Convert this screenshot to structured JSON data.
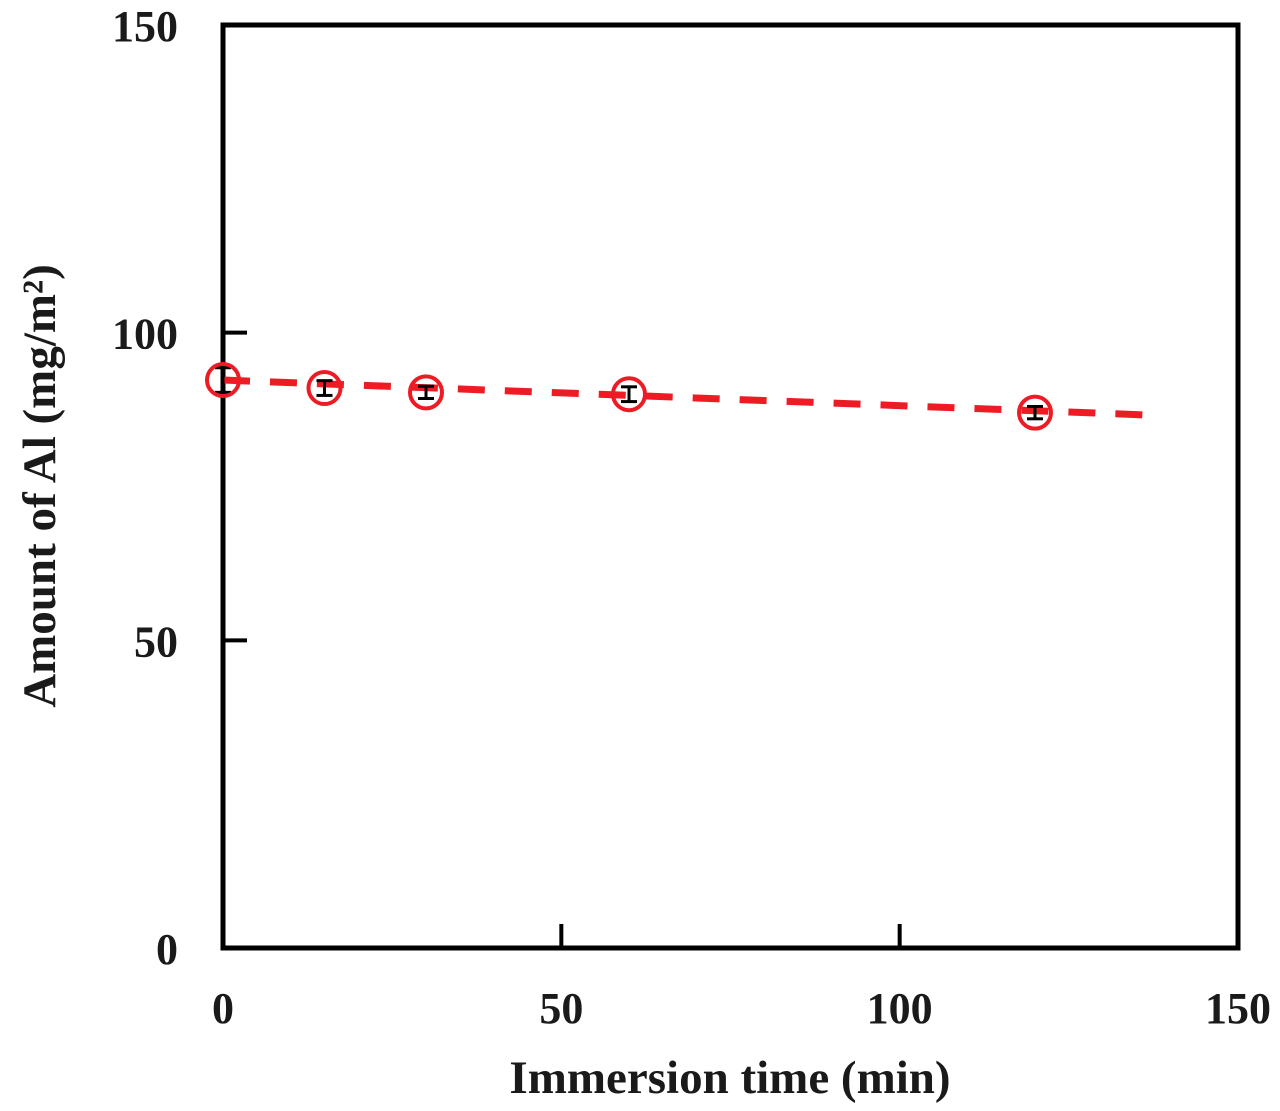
{
  "chart_data": {
    "type": "scatter",
    "title": "",
    "xlabel": "Immersion time (min)",
    "ylabel": "Amount of Al (mg/m²)",
    "xlim": [
      0,
      150
    ],
    "ylim": [
      0,
      150
    ],
    "x_ticks": [
      0,
      50,
      100,
      150
    ],
    "y_ticks": [
      0,
      50,
      100,
      150
    ],
    "grid": false,
    "legend": "none",
    "axis_color": "#000000",
    "background_color": "#ffffff",
    "series": [
      {
        "name": "amount-of-al",
        "marker": "open-circle",
        "marker_color": "#ed1c24",
        "x": [
          0,
          15,
          30,
          60,
          120
        ],
        "y": [
          92.3,
          91,
          90.3,
          90,
          87
        ],
        "y_err": [
          2,
          1.2,
          1,
          1.2,
          1
        ],
        "error_color": "#000000"
      }
    ],
    "trendline": {
      "style": "dashed",
      "color": "#ed1c24",
      "points": [
        [
          0,
          92.3
        ],
        [
          137,
          86.6
        ]
      ]
    }
  }
}
